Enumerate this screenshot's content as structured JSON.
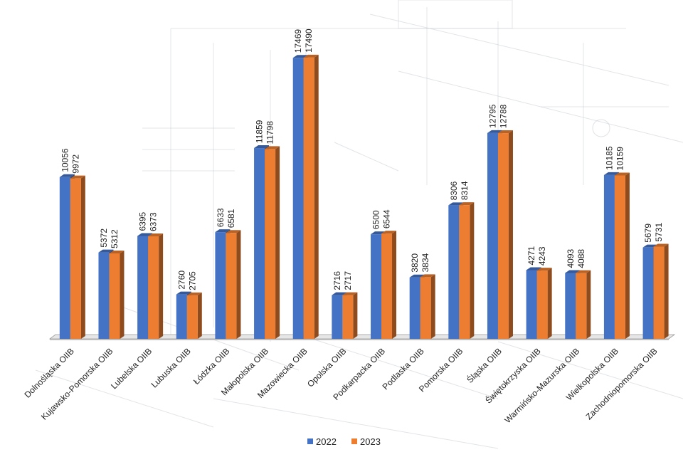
{
  "chart_data": {
    "type": "bar",
    "title": "",
    "xlabel": "",
    "ylabel": "",
    "ylim": [
      0,
      18500
    ],
    "grid": false,
    "legend_position": "bottom",
    "categories": [
      "Dolnośląska OIIB",
      "Kujawsko-Pomorska OIIB",
      "Lubelska OIIB",
      "Lubuska OIIB",
      "Łódzka OIIB",
      "Małopolska OIIB",
      "Mazowiecka OIIB",
      "Opolska OIIB",
      "Podkarpacka OIIB",
      "Podlaska OIIB",
      "Pomorska OIIB",
      "Śląska OIIB",
      "Świętokrzyska OIIB",
      "Warmińsko-Mazurska OIIB",
      "Wielkopolska OIIB",
      "Zachodniopomorska OIIB"
    ],
    "series": [
      {
        "name": "2022",
        "color": "#4472C4",
        "values": [
          10056,
          5372,
          6395,
          2760,
          6633,
          11859,
          17469,
          2716,
          6500,
          3820,
          8306,
          12795,
          4271,
          4093,
          10185,
          5679
        ]
      },
      {
        "name": "2023",
        "color": "#ED7D31",
        "values": [
          9972,
          5312,
          6373,
          2705,
          6581,
          11798,
          17490,
          2717,
          6544,
          3834,
          8314,
          12788,
          4243,
          4088,
          10159,
          5731
        ]
      }
    ]
  }
}
